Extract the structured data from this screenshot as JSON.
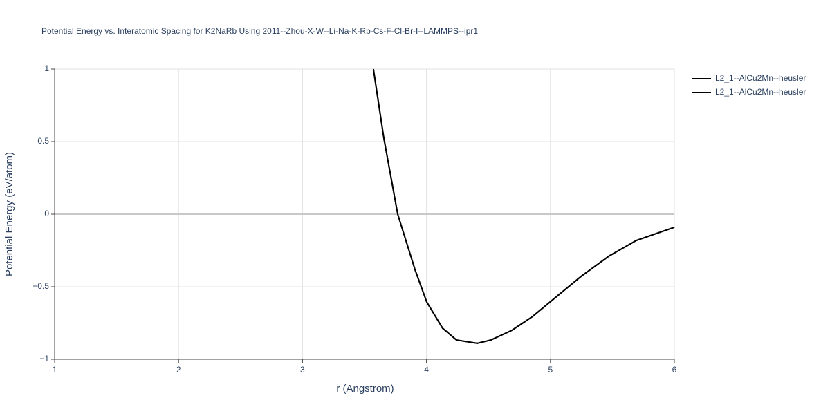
{
  "chart_data": {
    "type": "line",
    "title": "Potential Energy vs. Interatomic Spacing for K2NaRb Using 2011--Zhou-X-W--Li-Na-K-Rb-Cs-F-Cl-Br-I--LAMMPS--ipr1",
    "x_label": "r (Angstrom)",
    "y_label": "Potential Energy (eV/atom)",
    "x": [
      3.572,
      3.656,
      3.768,
      3.907,
      4.002,
      4.13,
      4.242,
      4.41,
      4.52,
      4.69,
      4.856,
      5.024,
      5.247,
      5.47,
      5.693,
      6.0
    ],
    "series": [
      {
        "name": "L2_1--AlCu2Mn--heusler",
        "color": "#000000",
        "values": [
          1.0,
          0.524,
          0.0,
          -0.381,
          -0.605,
          -0.786,
          -0.867,
          -0.89,
          -0.867,
          -0.8,
          -0.705,
          -0.586,
          -0.429,
          -0.29,
          -0.181,
          -0.09
        ]
      },
      {
        "name": "L2_1--AlCu2Mn--heusler",
        "color": "#000000",
        "values": [
          1.0,
          0.524,
          0.0,
          -0.381,
          -0.605,
          -0.786,
          -0.867,
          -0.89,
          -0.867,
          -0.8,
          -0.705,
          -0.586,
          -0.429,
          -0.29,
          -0.181,
          -0.09
        ]
      }
    ],
    "xlim": [
      1,
      6
    ],
    "xticks": [
      1,
      2,
      3,
      4,
      5,
      6
    ],
    "ylim": [
      -1,
      1
    ],
    "yticks": [
      {
        "value": -1,
        "label": "−1"
      },
      {
        "value": -0.5,
        "label": "−0.5"
      },
      0,
      0.5,
      1
    ],
    "grid": true,
    "legend": "top-right"
  }
}
